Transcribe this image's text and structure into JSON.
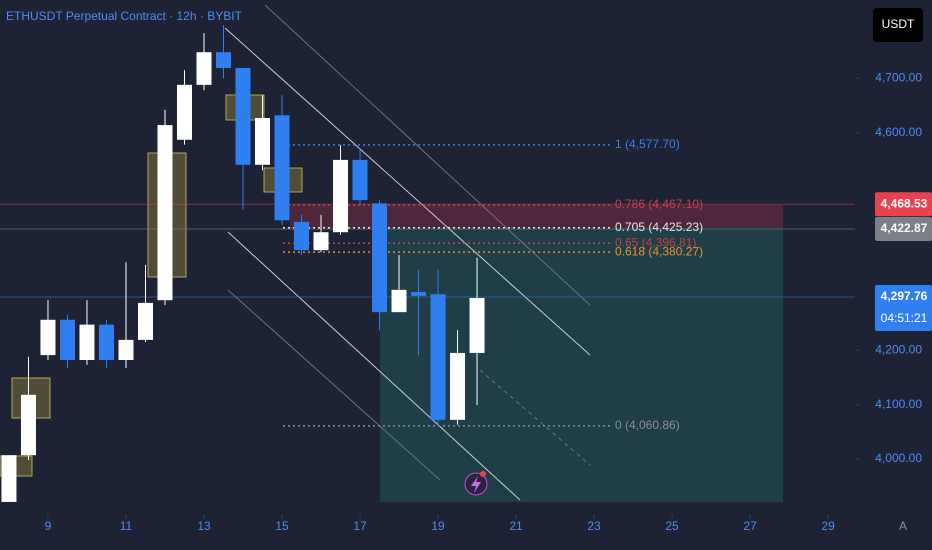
{
  "chart_data": {
    "type": "candlestick",
    "title": "ETHUSDT Perpetual Contract · 12h · BYBIT",
    "currency": "USDT",
    "up_color": "#ffffff",
    "down_color": "#2f7ff0",
    "x": [
      8,
      8.5,
      9,
      9.5,
      10,
      10.5,
      11,
      11.5,
      12,
      12.5,
      13,
      13.5,
      14,
      14.5,
      15,
      15.5,
      16,
      16.5,
      17,
      17.5,
      18,
      18.5,
      19,
      19.5,
      20
    ],
    "open": [
      3921,
      4007,
      4191,
      4256,
      4182,
      4247,
      4182,
      4219,
      4292,
      4587,
      4688,
      4748,
      4719,
      4541,
      4632,
      4436,
      4384,
      4417,
      4550,
      4470,
      4270,
      4307,
      4303,
      4072,
      4195
    ],
    "high": [
      4007,
      4188,
      4292,
      4265,
      4292,
      4256,
      4362,
      4357,
      4642,
      4715,
      4783,
      4798,
      4719,
      4669,
      4669,
      4449,
      4449,
      4577,
      4572,
      4476,
      4375,
      4348,
      4348,
      4237,
      4370
    ],
    "low": [
      3921,
      3998,
      4182,
      4167,
      4173,
      4167,
      4167,
      4215,
      4283,
      4578,
      4678,
      4700,
      4458,
      4531,
      4430,
      4375,
      4380,
      4412,
      4467,
      4237,
      4270,
      4191,
      4063,
      4063,
      4099
    ],
    "close": [
      4007,
      4118,
      4256,
      4182,
      4247,
      4182,
      4219,
      4287,
      4614,
      4688,
      4748,
      4719,
      4541,
      4627,
      4439,
      4384,
      4417,
      4550,
      4476,
      4270,
      4311,
      4300,
      4072,
      4195,
      4296
    ],
    "xlim": [
      7.77,
      29.69
    ],
    "xticks": [
      9,
      11,
      13,
      15,
      17,
      19,
      21,
      23,
      25,
      27,
      29
    ],
    "ylim": [
      3897,
      4844
    ],
    "yticks": [
      {
        "value": 4000,
        "label": "4,000.00"
      },
      {
        "value": 4100,
        "label": "4,100.00"
      },
      {
        "value": 4200,
        "label": "4,200.00"
      },
      {
        "value": 4600,
        "label": "4,600.00"
      },
      {
        "value": 4700,
        "label": "4,700.00"
      }
    ],
    "fib_levels": [
      {
        "value": 4577.7,
        "label": "1 (4,577.70)",
        "color": "#3a7fe8"
      },
      {
        "value": 4467.1,
        "label": "0.786 (4,467.10)",
        "color": "#c8424f"
      },
      {
        "value": 4425.23,
        "label": "0.705 (4,425.23)",
        "color": "#e6e6e6"
      },
      {
        "value": 4396.81,
        "label": "0.65 (4,396.81)",
        "color": "#c8424f"
      },
      {
        "value": 4380.27,
        "label": "0.618 (4,380.27)",
        "color": "#e8912e"
      },
      {
        "value": 4060.86,
        "label": "0 (4,060.86)",
        "color": "#8a8f9c"
      }
    ],
    "price_tags": [
      {
        "value": 4468.53,
        "label": "4,468.53",
        "color": "#e8424f"
      },
      {
        "value": 4422.87,
        "label": "4,422.87",
        "color": "#7c7f88"
      },
      {
        "value": 4297.76,
        "label": "4,297.76",
        "color": "#2f7ff0"
      }
    ],
    "countdown": "04:51:21",
    "axis_corner_label": "A"
  }
}
